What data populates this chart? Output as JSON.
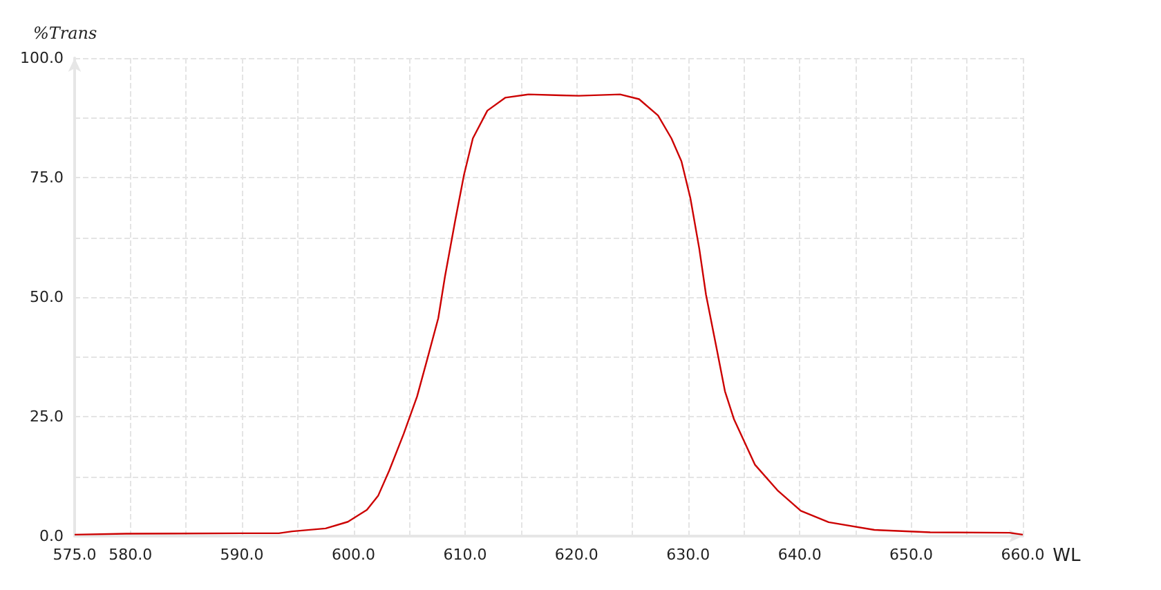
{
  "chart_data": {
    "type": "line",
    "xlabel": "WL",
    "ylabel": "%Trans",
    "series": [
      {
        "color": "#cc0000",
        "x": [
          575,
          579.6,
          590,
          593.3,
          594.5,
          597.5,
          599.5,
          601.2,
          602.2,
          603.2,
          604.5,
          605.7,
          606.6,
          607.6,
          608.2,
          609.1,
          609.9,
          610.7,
          612.0,
          613.6,
          615.7,
          618.6,
          620.2,
          623.9,
          625.6,
          627.3,
          628.5,
          629.4,
          630.2,
          631.0,
          631.6,
          632.5,
          633.3,
          634.1,
          636.0,
          638.0,
          640.1,
          642.6,
          646.7,
          651.7,
          658.8,
          660
        ],
        "values": [
          0.3,
          0.5,
          0.6,
          0.6,
          1.0,
          1.6,
          3.0,
          5.5,
          8.4,
          13.7,
          21.4,
          29.2,
          36.9,
          45.6,
          54.3,
          65.8,
          75.5,
          83.2,
          89.0,
          91.7,
          92.4,
          92.2,
          92.1,
          92.4,
          91.4,
          88.0,
          83.2,
          78.4,
          70.7,
          60.1,
          50.5,
          39.9,
          30.3,
          24.5,
          14.9,
          9.6,
          5.3,
          2.9,
          1.3,
          0.8,
          0.7,
          0.3
        ]
      }
    ],
    "xlim": [
      575,
      660
    ],
    "xticks": [
      {
        "value": 575,
        "label": "575.0"
      },
      {
        "value": 580,
        "label": "580.0"
      },
      {
        "value": 585,
        "label": null
      },
      {
        "value": 590,
        "label": "590.0"
      },
      {
        "value": 595,
        "label": null
      },
      {
        "value": 600,
        "label": "600.0"
      },
      {
        "value": 605,
        "label": null
      },
      {
        "value": 610,
        "label": "610.0"
      },
      {
        "value": 615,
        "label": null
      },
      {
        "value": 620,
        "label": "620.0"
      },
      {
        "value": 625,
        "label": null
      },
      {
        "value": 630,
        "label": "630.0"
      },
      {
        "value": 635,
        "label": null
      },
      {
        "value": 640,
        "label": "640.0"
      },
      {
        "value": 645,
        "label": null
      },
      {
        "value": 650,
        "label": "650.0"
      },
      {
        "value": 655,
        "label": null
      },
      {
        "value": 660,
        "label": "660.0"
      }
    ],
    "ylim": [
      0,
      100
    ],
    "yticks": [
      {
        "value": 0,
        "label": "0.0"
      },
      {
        "value": 12.5,
        "label": null
      },
      {
        "value": 25,
        "label": "25.0"
      },
      {
        "value": 37.5,
        "label": null
      },
      {
        "value": 50,
        "label": "50.0"
      },
      {
        "value": 62.5,
        "label": null
      },
      {
        "value": 75,
        "label": "75.0"
      },
      {
        "value": 87.5,
        "label": null
      },
      {
        "value": 100,
        "label": "100.0"
      }
    ],
    "grid": true,
    "marker": "none",
    "line_style": "solid"
  }
}
